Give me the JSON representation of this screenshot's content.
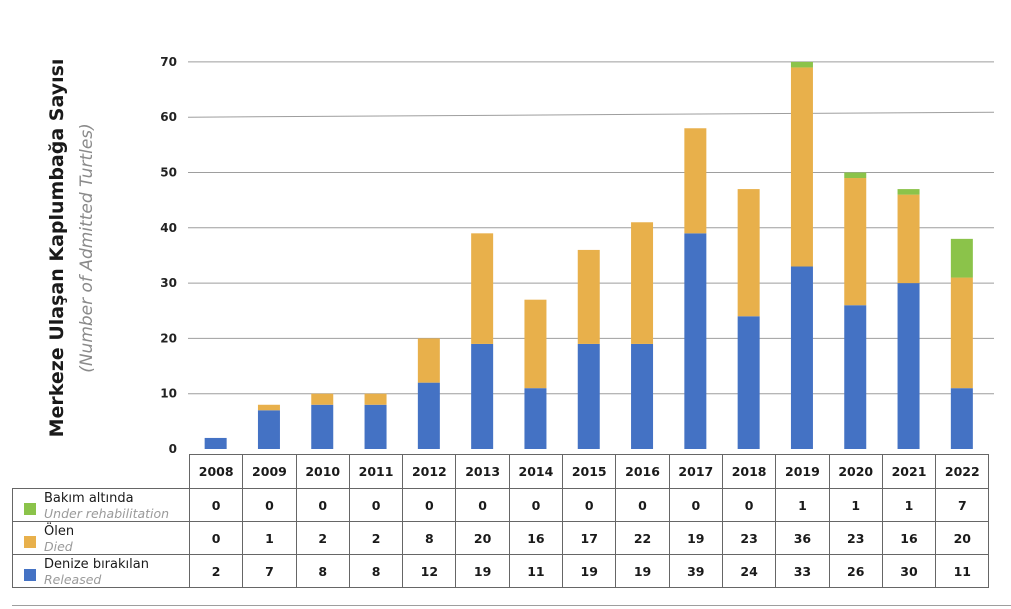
{
  "chart_data": {
    "type": "bar",
    "stacked": true,
    "ylabel": "Merkeze Ulaşan Kaplumbağa Sayısı",
    "ylabel_sub": "(Number of Admitted Turtles)",
    "ylim": [
      0,
      70
    ],
    "yticks": [
      0,
      10,
      20,
      30,
      40,
      50,
      60,
      70
    ],
    "grid": true,
    "categories": [
      "2008",
      "2009",
      "2010",
      "2011",
      "2012",
      "2013",
      "2014",
      "2015",
      "2016",
      "2017",
      "2018",
      "2019",
      "2020",
      "2021",
      "2022"
    ],
    "series": [
      {
        "name": "Denize bırakılan",
        "name_en": "Released",
        "color": "#4472c4",
        "values": [
          2,
          7,
          8,
          8,
          12,
          19,
          11,
          19,
          19,
          39,
          24,
          33,
          26,
          30,
          11
        ]
      },
      {
        "name": "Ölen",
        "name_en": "Died",
        "color": "#e8b04b",
        "values": [
          0,
          1,
          2,
          2,
          8,
          20,
          16,
          17,
          22,
          19,
          23,
          36,
          23,
          16,
          20
        ]
      },
      {
        "name": "Bakım altında",
        "name_en": "Under rehabilitation",
        "color": "#8bc34a",
        "values": [
          0,
          0,
          0,
          0,
          0,
          0,
          0,
          0,
          0,
          0,
          0,
          1,
          1,
          1,
          7
        ]
      }
    ]
  }
}
